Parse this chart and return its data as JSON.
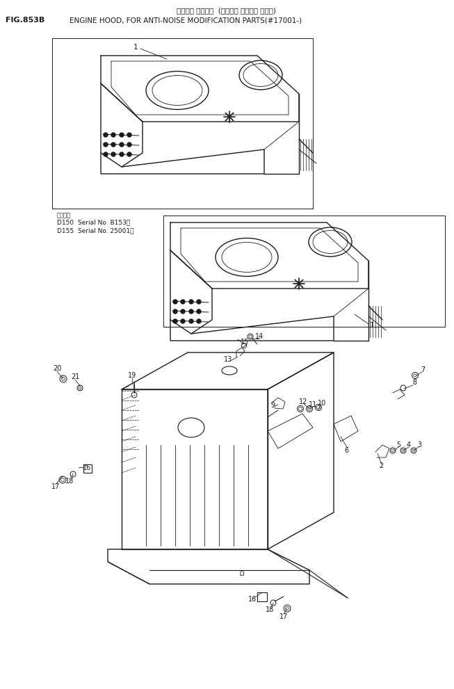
{
  "title_jp": "エンジン フード・  (ソウオン タイサク ブヒン)",
  "title_en": "ENGINE HOOD, FOR ANTI-NOISE MODIFICATION PARTS(#17001-)",
  "fig_label": "FIG.853B",
  "serial_note": "適用車種",
  "serial_d150": "D150  Serial No. B153～",
  "serial_d155": "D155  Serial No. 25001～",
  "bg_color": "#ffffff",
  "lc": "#1a1a1a"
}
